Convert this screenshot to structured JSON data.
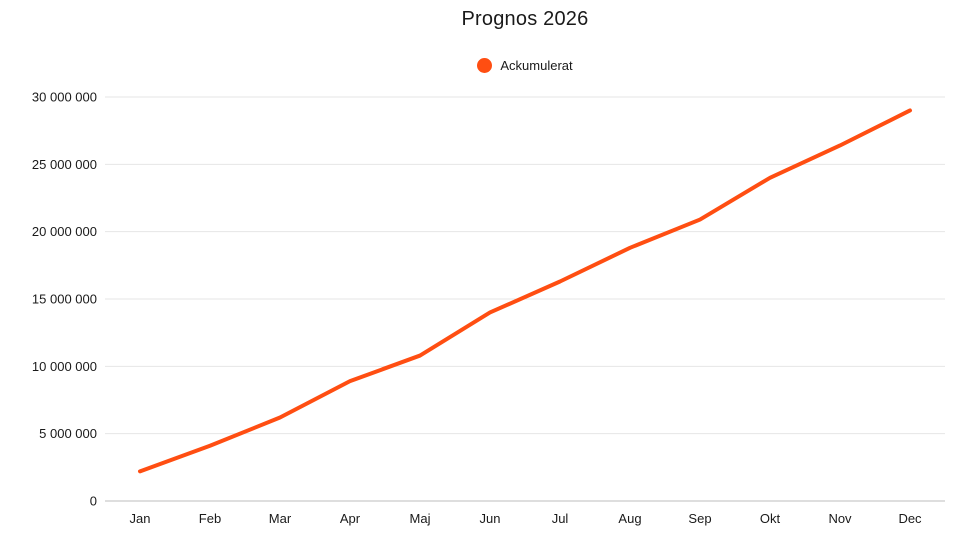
{
  "chart_data": {
    "type": "line",
    "title": "Prognos 2026",
    "categories": [
      "Jan",
      "Feb",
      "Mar",
      "Apr",
      "Maj",
      "Jun",
      "Jul",
      "Aug",
      "Sep",
      "Okt",
      "Nov",
      "Dec"
    ],
    "series": [
      {
        "name": "Ackumulerat",
        "color": "#FF4E12",
        "values": [
          2200000,
          4100000,
          6200000,
          8900000,
          10800000,
          14000000,
          16300000,
          18800000,
          20900000,
          24000000,
          26400000,
          29000000
        ]
      }
    ],
    "xlabel": "",
    "ylabel": "",
    "ylim": [
      0,
      30000000
    ],
    "ytick_step": 5000000,
    "ytick_labels": [
      "0",
      "5 000 000",
      "10 000 000",
      "15 000 000",
      "20 000 000",
      "25 000 000",
      "30 000 000"
    ],
    "grid": true,
    "legend_position": "top",
    "number_format": "space-thousands",
    "colors": {
      "background": "#ffffff",
      "gridline": "#e6e6e6",
      "axis_baseline": "#bdbdbd",
      "text": "#1a1a1a",
      "series_line": "#FF4E12"
    }
  }
}
